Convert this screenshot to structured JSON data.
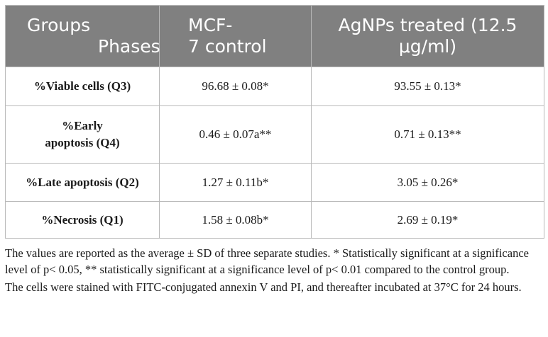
{
  "table": {
    "header": {
      "corner_top": "Groups",
      "corner_bottom": "Phases",
      "col1_line1": "MCF-",
      "col1_line2": "7 control",
      "col2_line1": "AgNPs treated (12.5",
      "col2_line2": "μg/ml)"
    },
    "rows": [
      {
        "label": "%Viable cells (Q3)",
        "label_line2": "",
        "control": "96.68 ± 0.08*",
        "treated": "93.55 ± 0.13*"
      },
      {
        "label": "%Early",
        "label_line2": "apoptosis (Q4)",
        "control": "0.46 ± 0.07a**",
        "treated": "0.71 ± 0.13**"
      },
      {
        "label": "%Late apoptosis (Q2)",
        "label_line2": "",
        "control": "1.27 ± 0.11b*",
        "treated": "3.05 ± 0.26*"
      },
      {
        "label": "%Necrosis (Q1)",
        "label_line2": "",
        "control": "1.58 ± 0.08b*",
        "treated": "2.69 ± 0.19*"
      }
    ]
  },
  "notes": {
    "note1": "The values are reported as the average ± SD of three separate studies. * Statistically significant at a significance level of p< 0.05, ** statistically significant at a significance level of p< 0.01 compared to the control group.",
    "note2": "The cells were stained with FITC-conjugated annexin V and PI, and thereafter incubated at 37°C for 24 hours."
  }
}
